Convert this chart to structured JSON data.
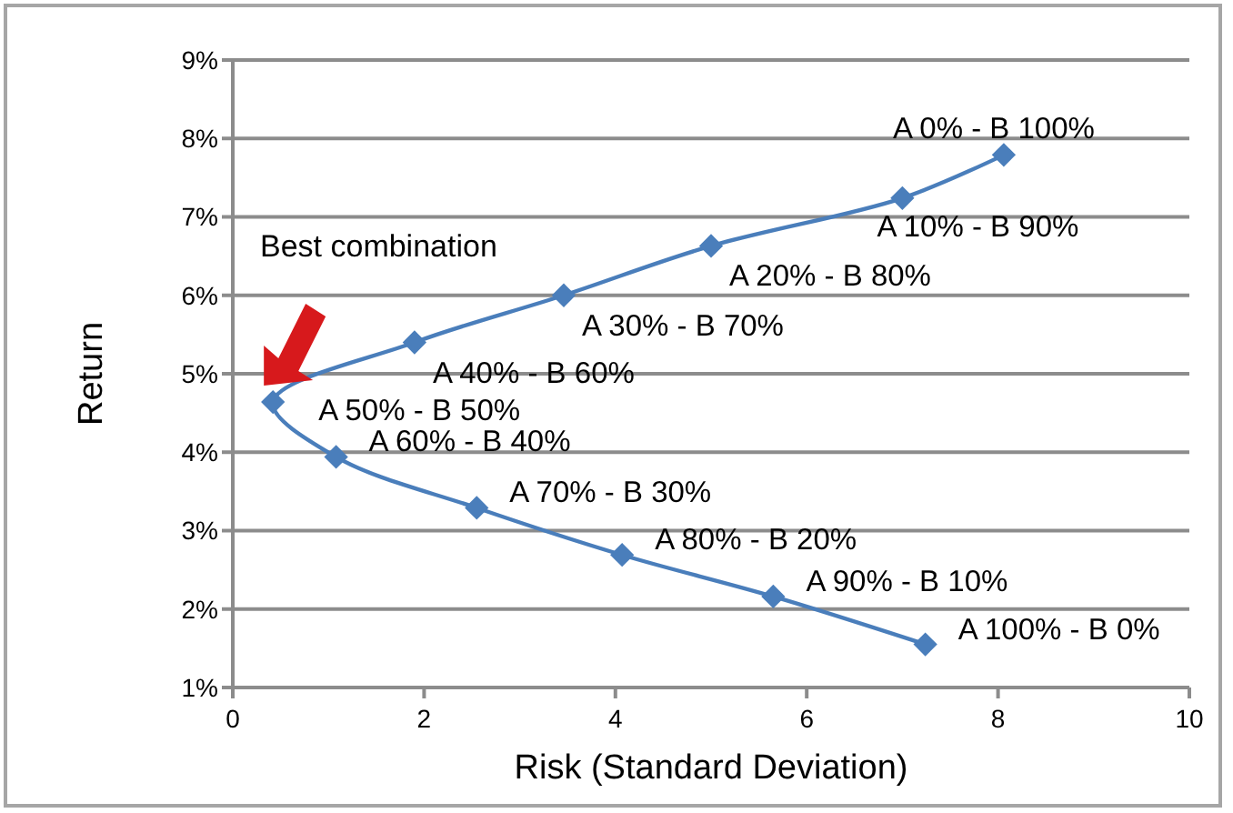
{
  "chart_data": {
    "type": "line",
    "xlabel": "Risk (Standard Deviation)",
    "ylabel": "Return",
    "x": [
      8.06,
      7.0,
      5.0,
      3.46,
      1.9,
      0.42,
      1.08,
      2.55,
      4.07,
      5.65,
      7.24
    ],
    "series": [
      {
        "color": "#4a7ebb",
        "values": [
          7.79,
          7.24,
          6.63,
          6.0,
          5.4,
          4.64,
          3.94,
          3.29,
          2.69,
          2.16,
          1.55
        ]
      }
    ],
    "xlim": [
      0,
      10
    ],
    "xticks": [
      0,
      2,
      4,
      6,
      8,
      10
    ],
    "ylim": [
      1,
      9
    ],
    "yticks": [
      {
        "value": 1,
        "label": "1%"
      },
      {
        "value": 2,
        "label": "2%"
      },
      {
        "value": 3,
        "label": "3%"
      },
      {
        "value": 4,
        "label": "4%"
      },
      {
        "value": 5,
        "label": "5%"
      },
      {
        "value": 6,
        "label": "6%"
      },
      {
        "value": 7,
        "label": "7%"
      },
      {
        "value": 8,
        "label": "8%"
      },
      {
        "value": 9,
        "label": "9%"
      }
    ],
    "grid": "y",
    "marker": "diamond",
    "line_style": "solid",
    "annotations": [
      "Best combination",
      {
        "text": "A 0% - B 100%",
        "x": 8.06,
        "y": 7.79
      },
      {
        "text": "A 10% - B 90%",
        "x": 7.0,
        "y": 7.24
      },
      {
        "text": "A 20% - B 80%",
        "x": 5.0,
        "y": 6.63
      },
      {
        "text": "A 30% - B 70%",
        "x": 3.46,
        "y": 6.0
      },
      {
        "text": "A 40% - B 60%",
        "x": 1.9,
        "y": 5.4
      },
      {
        "text": "A 50% - B 50%",
        "x": 0.42,
        "y": 4.64
      },
      {
        "text": "A 60% - B 40%",
        "x": 1.08,
        "y": 3.94
      },
      {
        "text": "A 70% - B 30%",
        "x": 2.55,
        "y": 3.29
      },
      {
        "text": "A 80% - B 20%",
        "x": 4.07,
        "y": 2.69
      },
      {
        "text": "A 90% - B 10%",
        "x": 5.65,
        "y": 2.16
      },
      {
        "text": "A 100% - B 0%",
        "x": 7.24,
        "y": 1.55
      }
    ]
  }
}
